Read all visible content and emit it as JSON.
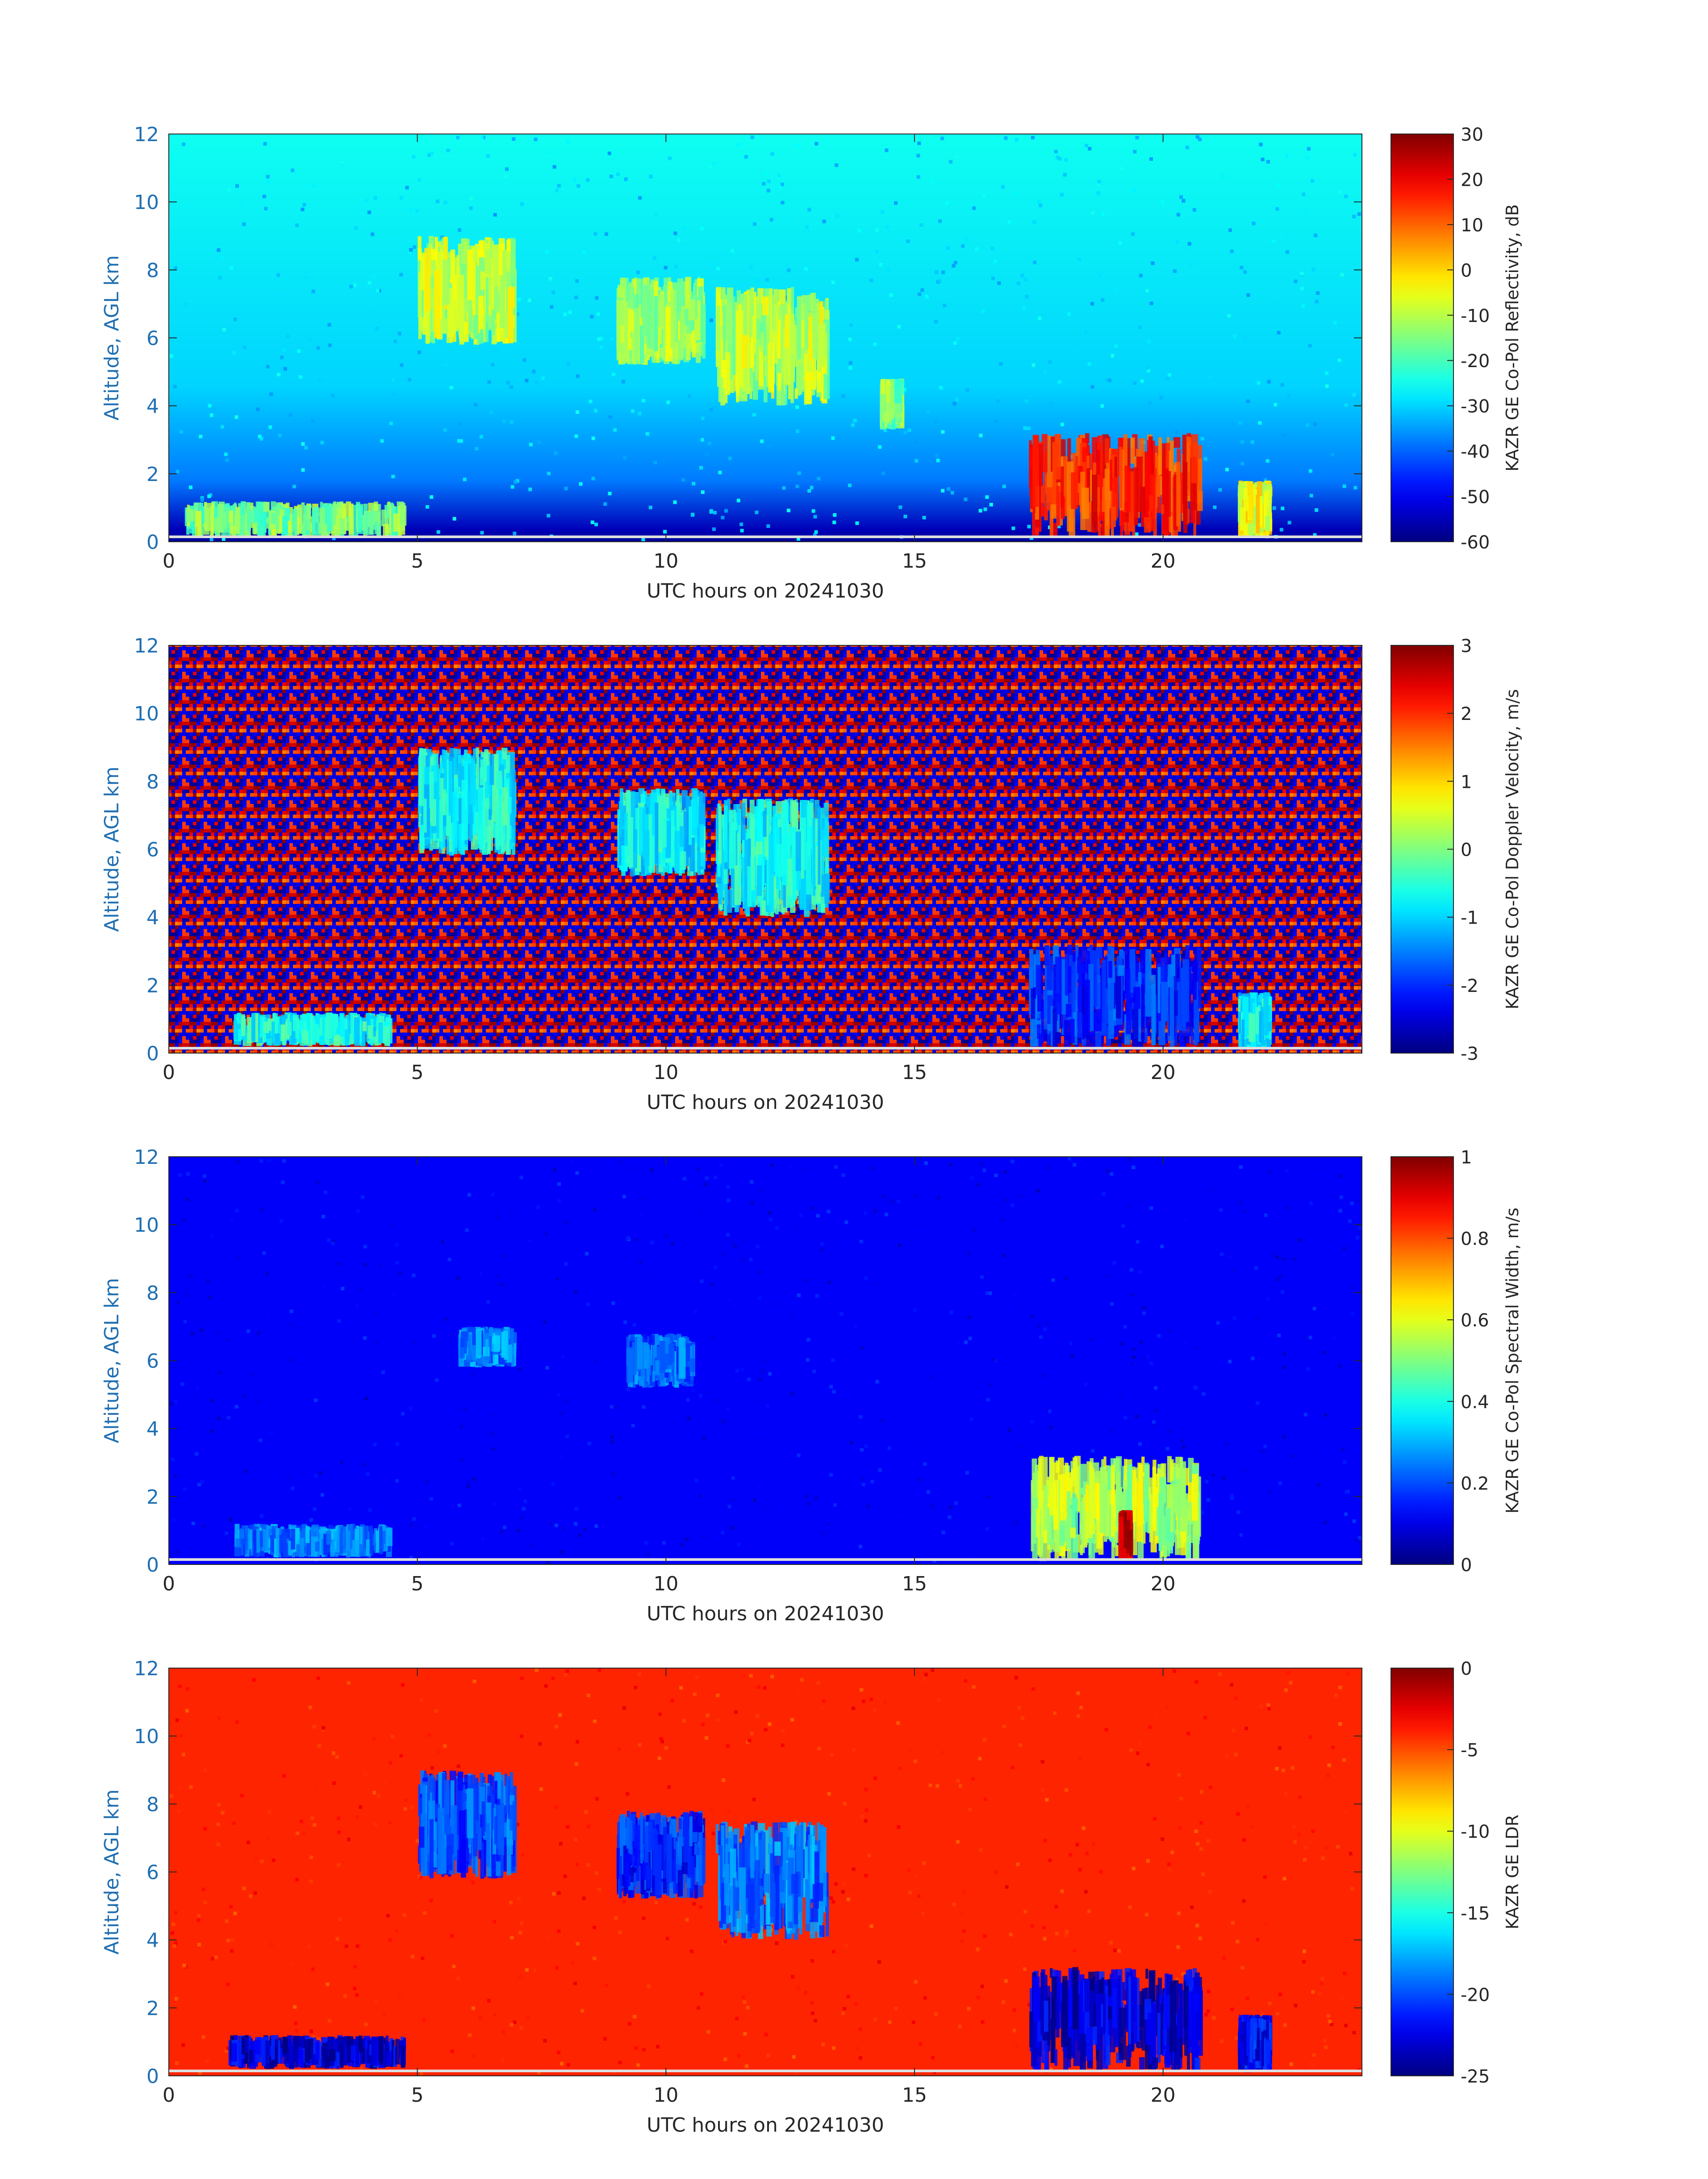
{
  "chart_data": [
    {
      "type": "heatmap",
      "panel": "reflectivity",
      "xlabel": "UTC hours on 20241030",
      "ylabel": "Altitude, AGL km",
      "x_ticks": [
        "0",
        "5",
        "10",
        "15",
        "20"
      ],
      "y_ticks": [
        "0",
        "2",
        "4",
        "6",
        "8",
        "10",
        "12"
      ],
      "xlim": [
        0,
        24
      ],
      "ylim": [
        0,
        12
      ],
      "colorbar": {
        "label": "KAZR GE Co-Pol Reflectivity, dB",
        "min": -60,
        "max": 30,
        "ticks": [
          "30",
          "20",
          "10",
          "0",
          "-10",
          "-20",
          "-30",
          "-40",
          "-50",
          "-60"
        ],
        "colormap": "jet"
      },
      "background_value": -30,
      "features": [
        {
          "t0": 0.3,
          "t1": 4.8,
          "z0": 0.1,
          "z1": 1.2,
          "v": -15
        },
        {
          "t0": 5.0,
          "t1": 7.0,
          "z0": 5.8,
          "z1": 9.0,
          "v": -10
        },
        {
          "t0": 9.0,
          "t1": 10.8,
          "z0": 5.2,
          "z1": 7.8,
          "v": -12
        },
        {
          "t0": 11.0,
          "t1": 13.3,
          "z0": 4.0,
          "z1": 7.5,
          "v": -10
        },
        {
          "t0": 14.3,
          "t1": 14.8,
          "z0": 3.3,
          "z1": 4.8,
          "v": -15
        },
        {
          "t0": 17.3,
          "t1": 20.8,
          "z0": 0.1,
          "z1": 3.2,
          "v": 15
        },
        {
          "t0": 21.5,
          "t1": 22.2,
          "z0": 0.1,
          "z1": 1.8,
          "v": -5
        }
      ]
    },
    {
      "type": "heatmap",
      "panel": "doppler_velocity",
      "xlabel": "UTC hours on 20241030",
      "ylabel": "Altitude, AGL km",
      "x_ticks": [
        "0",
        "5",
        "10",
        "15",
        "20"
      ],
      "y_ticks": [
        "0",
        "2",
        "4",
        "6",
        "8",
        "10",
        "12"
      ],
      "xlim": [
        0,
        24
      ],
      "ylim": [
        0,
        12
      ],
      "colorbar": {
        "label": "KAZR GE Co-Pol Doppler Velocity, m/s",
        "min": -3,
        "max": 3,
        "ticks": [
          "3",
          "2",
          "1",
          "0",
          "-1",
          "-2",
          "-3"
        ],
        "colormap": "jet"
      },
      "background": "noise",
      "features": [
        {
          "t0": 1.3,
          "t1": 4.5,
          "z0": 0.2,
          "z1": 1.2,
          "v": -0.6
        },
        {
          "t0": 5.0,
          "t1": 7.0,
          "z0": 5.8,
          "z1": 9.0,
          "v": -0.7
        },
        {
          "t0": 9.0,
          "t1": 10.8,
          "z0": 5.2,
          "z1": 7.8,
          "v": -0.8
        },
        {
          "t0": 11.0,
          "t1": 13.3,
          "z0": 4.0,
          "z1": 7.5,
          "v": -0.7
        },
        {
          "t0": 17.3,
          "t1": 20.8,
          "z0": 0.1,
          "z1": 3.2,
          "v": -2.0
        },
        {
          "t0": 21.5,
          "t1": 22.2,
          "z0": 0.1,
          "z1": 1.8,
          "v": -0.8
        }
      ]
    },
    {
      "type": "heatmap",
      "panel": "spectral_width",
      "xlabel": "UTC hours on 20241030",
      "ylabel": "Altitude, AGL km",
      "x_ticks": [
        "0",
        "5",
        "10",
        "15",
        "20"
      ],
      "y_ticks": [
        "0",
        "2",
        "4",
        "6",
        "8",
        "10",
        "12"
      ],
      "xlim": [
        0,
        24
      ],
      "ylim": [
        0,
        12
      ],
      "colorbar": {
        "label": "KAZR GE Co-Pol Spectral Width, m/s",
        "min": 0,
        "max": 1,
        "ticks": [
          "1",
          "0.8",
          "0.6",
          "0.4",
          "0.2",
          "0"
        ],
        "colormap": "jet"
      },
      "background_value": 0.12,
      "features": [
        {
          "t0": 1.3,
          "t1": 4.5,
          "z0": 0.2,
          "z1": 1.2,
          "v": 0.25
        },
        {
          "t0": 5.8,
          "t1": 7.0,
          "z0": 5.8,
          "z1": 7.0,
          "v": 0.25
        },
        {
          "t0": 9.2,
          "t1": 10.6,
          "z0": 5.2,
          "z1": 6.8,
          "v": 0.22
        },
        {
          "t0": 17.3,
          "t1": 20.8,
          "z0": 0.1,
          "z1": 3.2,
          "v": 0.55
        },
        {
          "t0": 19.1,
          "t1": 19.4,
          "z0": 0.1,
          "z1": 1.6,
          "v": 0.95
        }
      ]
    },
    {
      "type": "heatmap",
      "panel": "ldr",
      "xlabel": "UTC hours on 20241030",
      "ylabel": "Altitude, AGL km",
      "x_ticks": [
        "0",
        "5",
        "10",
        "15",
        "20"
      ],
      "y_ticks": [
        "0",
        "2",
        "4",
        "6",
        "8",
        "10",
        "12"
      ],
      "xlim": [
        0,
        24
      ],
      "ylim": [
        0,
        12
      ],
      "colorbar": {
        "label": "KAZR GE LDR",
        "min": -25,
        "max": 0,
        "ticks": [
          "0",
          "-5",
          "-10",
          "-15",
          "-20",
          "-25"
        ],
        "colormap": "jet"
      },
      "background_value": -4,
      "features": [
        {
          "t0": 1.2,
          "t1": 4.8,
          "z0": 0.2,
          "z1": 1.2,
          "v": -23
        },
        {
          "t0": 5.0,
          "t1": 7.0,
          "z0": 5.8,
          "z1": 9.0,
          "v": -20
        },
        {
          "t0": 9.0,
          "t1": 10.8,
          "z0": 5.2,
          "z1": 7.8,
          "v": -21
        },
        {
          "t0": 11.0,
          "t1": 13.3,
          "z0": 4.0,
          "z1": 7.5,
          "v": -19
        },
        {
          "t0": 17.3,
          "t1": 20.8,
          "z0": 0.1,
          "z1": 3.2,
          "v": -23
        },
        {
          "t0": 21.5,
          "t1": 22.2,
          "z0": 0.1,
          "z1": 1.8,
          "v": -22
        }
      ]
    }
  ]
}
